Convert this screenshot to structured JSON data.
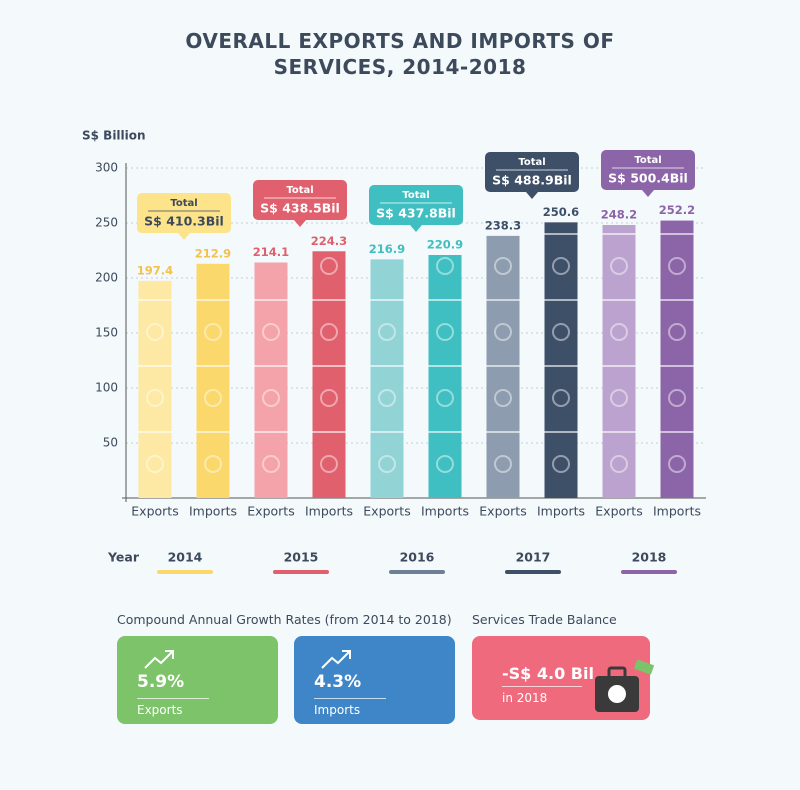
{
  "chart_data": {
    "type": "bar",
    "title": "OVERALL EXPORTS AND IMPORTS OF SERVICES, 2014-2018",
    "y_label": "S$ Billion",
    "categories": [
      "Exports",
      "Imports",
      "Exports",
      "Imports",
      "Exports",
      "Imports",
      "Exports",
      "Imports",
      "Exports",
      "Imports"
    ],
    "values": [
      197.4,
      212.9,
      214.1,
      224.3,
      216.9,
      220.9,
      238.3,
      250.6,
      248.2,
      252.2
    ],
    "colors": [
      "#fde9a3",
      "#fbd86c",
      "#f4a3aa",
      "#e0606e",
      "#92d4d5",
      "#3fbfc1",
      "#8d9caf",
      "#3e4f68",
      "#bca3cf",
      "#8c65a8"
    ],
    "label_colors": [
      "#f2c14e",
      "#f2c14e",
      "#e0606e",
      "#e0606e",
      "#3fbfc1",
      "#3fbfc1",
      "#3e4f68",
      "#3e4f68",
      "#8c65a8",
      "#8c65a8"
    ],
    "ylim": [
      0,
      300
    ],
    "yticks": [
      50,
      100,
      150,
      200,
      250,
      300
    ],
    "grid": true,
    "year_label": "Year",
    "years": [
      "2014",
      "2015",
      "2016",
      "2017",
      "2018"
    ],
    "year_colors": [
      "#fbd86c",
      "#e0606e",
      "#6d8096",
      "#3e4f68",
      "#8c65a8"
    ],
    "totals": {
      "label": "Total",
      "values": [
        410.3,
        438.5,
        437.8,
        488.9,
        500.4
      ],
      "value_labels": [
        "S$ 410.3Bil",
        "S$ 438.5Bil",
        "S$ 437.8Bil",
        "S$ 488.9Bil",
        "S$ 500.4Bil"
      ],
      "colors": [
        "#fde38a",
        "#e0606e",
        "#3fbfc1",
        "#3e4f68",
        "#8c65a8"
      ],
      "text_colors": [
        "#3d4a5c",
        "#ffffff",
        "#ffffff",
        "#ffffff",
        "#ffffff"
      ]
    }
  },
  "panels": {
    "growth": {
      "title": "Compound Annual Growth Rates (from 2014 to 2018)",
      "items": [
        {
          "value": "5.9%",
          "label": "Exports"
        },
        {
          "value": "4.3%",
          "label": "Imports"
        }
      ]
    },
    "balance": {
      "title": "Services Trade Balance",
      "value": "-S$ 4.0 Bil",
      "note": "in 2018"
    }
  }
}
